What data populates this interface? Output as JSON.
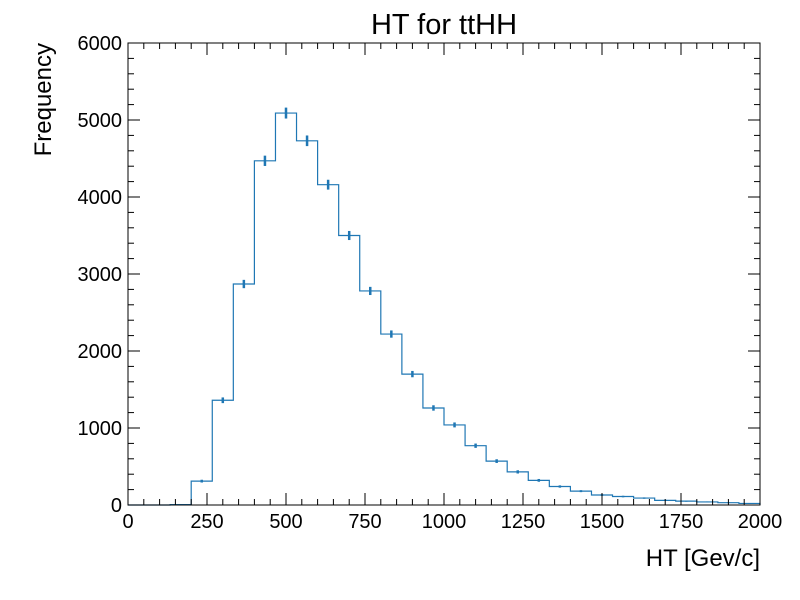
{
  "chart_data": {
    "type": "histogram",
    "title": "HT for ttHH",
    "xlabel": "HT [Gev/c]",
    "ylabel": "Frequency",
    "xlim": [
      0,
      2000
    ],
    "ylim": [
      0,
      6000
    ],
    "grid": false,
    "x_ticks": [
      "0",
      "250",
      "500",
      "750",
      "1000",
      "1250",
      "1500",
      "1750",
      "2000"
    ],
    "y_ticks": [
      "0",
      "1000",
      "2000",
      "3000",
      "4000",
      "5000",
      "6000"
    ],
    "series": [
      {
        "color": "#1f77b4",
        "bin_edges": [
          0,
          66.7,
          133.3,
          200,
          266.7,
          333.3,
          400,
          466.7,
          533.3,
          600,
          666.7,
          733.3,
          800,
          866.7,
          933.3,
          1000,
          1066.7,
          1133.3,
          1200,
          1266.7,
          1333.3,
          1400,
          1466.7,
          1533.3,
          1600,
          1666.7,
          1733.3,
          1800,
          1866.7,
          1933.3,
          2000
        ],
        "counts": [
          0,
          0,
          5,
          310,
          1360,
          2870,
          4470,
          5090,
          4730,
          4160,
          3500,
          2780,
          2220,
          1700,
          1260,
          1040,
          770,
          570,
          430,
          320,
          240,
          180,
          130,
          110,
          90,
          60,
          50,
          40,
          30,
          20
        ],
        "errors": [
          0,
          0,
          2,
          18,
          37,
          54,
          67,
          71,
          69,
          64,
          59,
          53,
          47,
          41,
          35,
          32,
          28,
          24,
          21,
          18,
          15,
          13,
          11,
          10,
          9,
          8,
          7,
          6,
          5,
          4
        ]
      }
    ]
  }
}
